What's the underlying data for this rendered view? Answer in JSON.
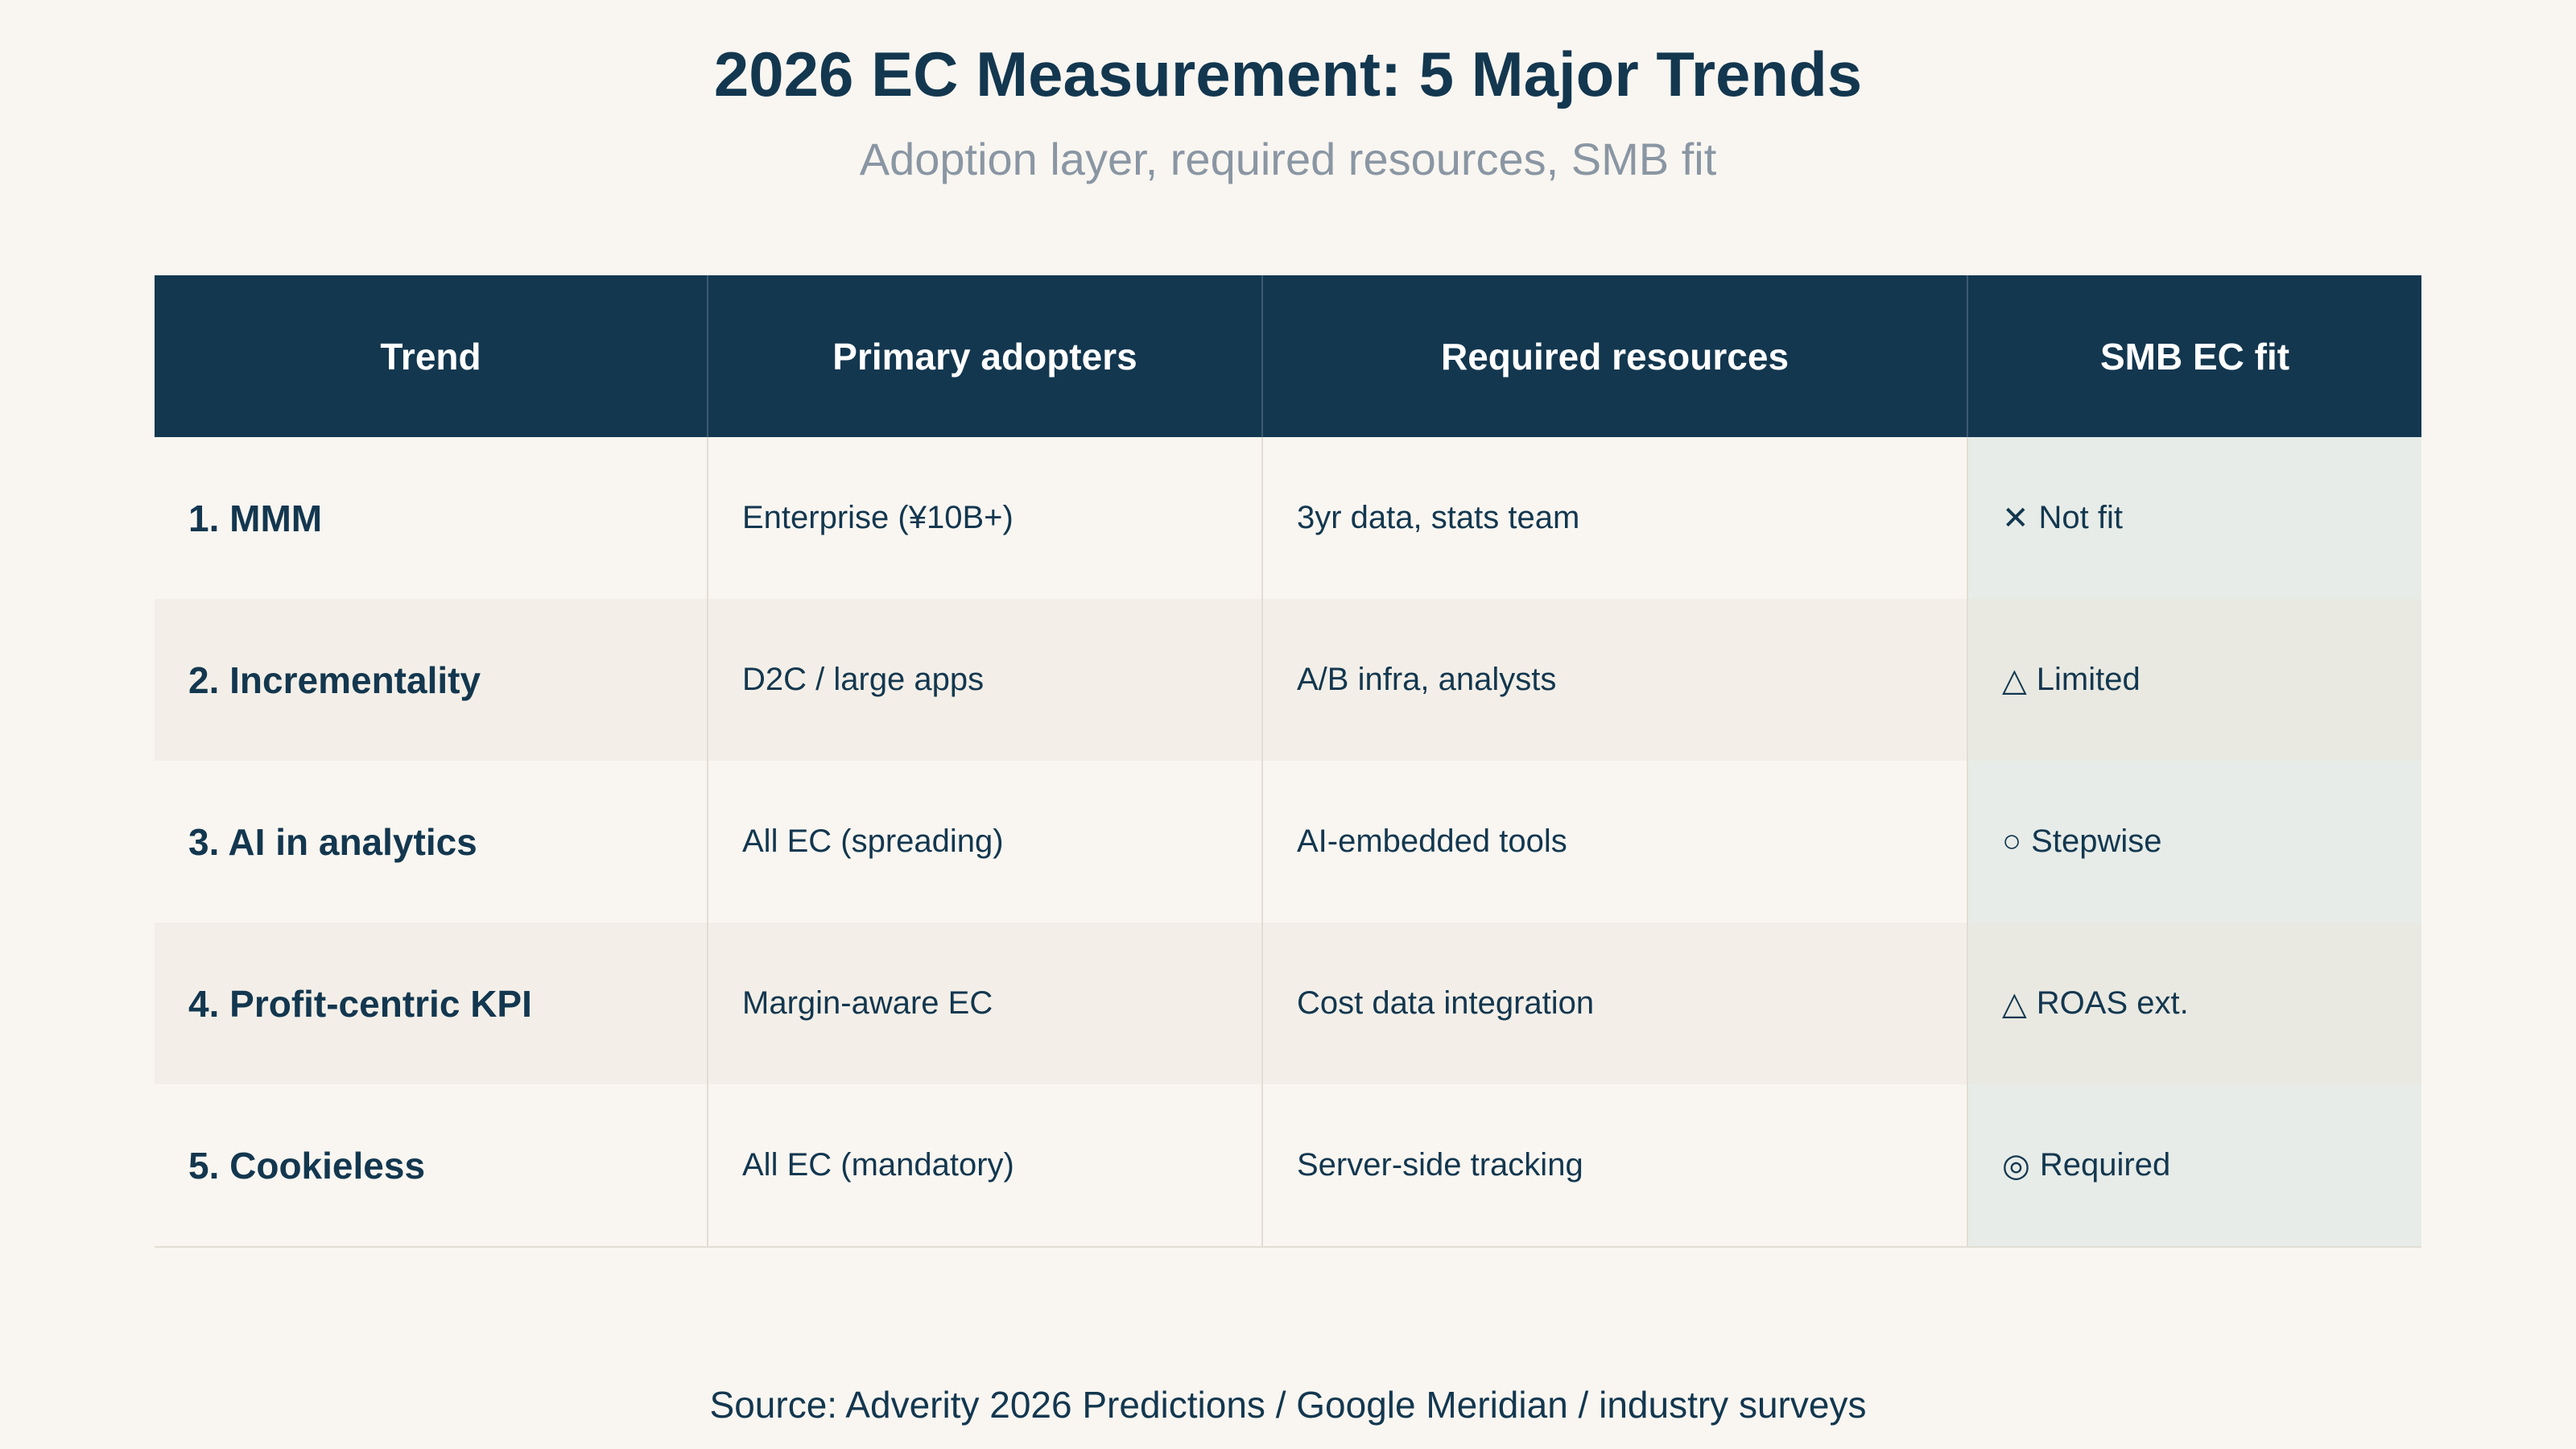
{
  "title": "2026 EC Measurement: 5 Major Trends",
  "subtitle": "Adoption layer, required resources, SMB fit",
  "table": {
    "headers": [
      "Trend",
      "Primary adopters",
      "Required resources",
      "SMB EC fit"
    ],
    "rows": [
      {
        "trend": "1. MMM",
        "adopters": "Enterprise (¥10B+)",
        "resources": "3yr data, stats team",
        "fit_symbol": "✕",
        "fit_label": "Not fit"
      },
      {
        "trend": "2. Incrementality",
        "adopters": "D2C / large apps",
        "resources": "A/B infra, analysts",
        "fit_symbol": "△",
        "fit_label": "Limited"
      },
      {
        "trend": "3. AI in analytics",
        "adopters": "All EC (spreading)",
        "resources": "AI-embedded tools",
        "fit_symbol": "○",
        "fit_label": "Stepwise"
      },
      {
        "trend": "4. Profit-centric KPI",
        "adopters": "Margin-aware EC",
        "resources": "Cost data integration",
        "fit_symbol": "△",
        "fit_label": "ROAS ext."
      },
      {
        "trend": "5. Cookieless",
        "adopters": "All EC (mandatory)",
        "resources": "Server-side tracking",
        "fit_symbol": "◎",
        "fit_label": "Required"
      }
    ]
  },
  "source": "Source: Adverity 2026 Predictions / Google Meridian / industry surveys"
}
